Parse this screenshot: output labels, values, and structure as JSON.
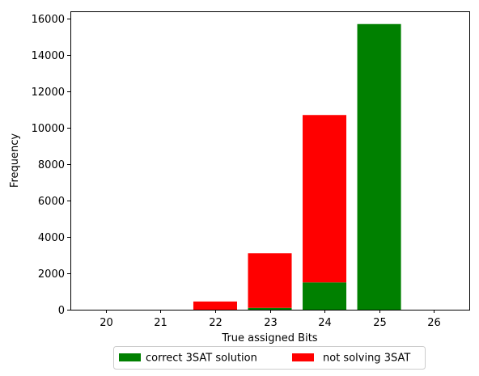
{
  "chart_data": {
    "type": "bar",
    "stacked": true,
    "categories": [
      "20",
      "21",
      "22",
      "23",
      "24",
      "25",
      "26"
    ],
    "series": [
      {
        "name": "correct 3SAT solution",
        "color": "#008000",
        "values": [
          0,
          0,
          0,
          100,
          1500,
          15700,
          0
        ]
      },
      {
        "name": "not solving 3SAT",
        "color": "#ff0000",
        "values": [
          0,
          0,
          450,
          3000,
          9200,
          0,
          0
        ]
      }
    ],
    "xlabel": "True assigned Bits",
    "ylabel": "Frequency",
    "ylim": [
      0,
      16400
    ],
    "yticks": [
      0,
      2000,
      4000,
      6000,
      8000,
      10000,
      12000,
      14000,
      16000
    ],
    "xlim": [
      19.35,
      26.65
    ],
    "grid": false,
    "legend_position": "bottom-center outside"
  }
}
